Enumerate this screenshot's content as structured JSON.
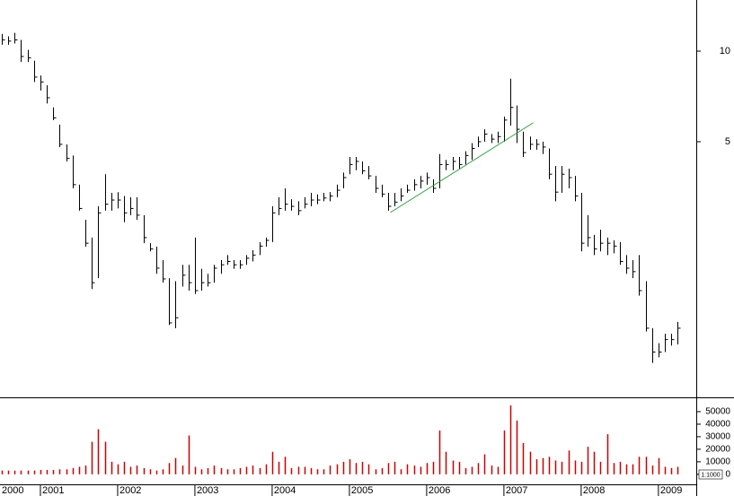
{
  "chart_data": {
    "type": "ohlc",
    "log_scale": true,
    "color": "#000000",
    "x": [
      2000.5,
      2000.583,
      2000.667,
      2000.75,
      2000.833,
      2000.917,
      2001,
      2001.083,
      2001.167,
      2001.25,
      2001.333,
      2001.417,
      2001.5,
      2001.583,
      2001.667,
      2001.75,
      2001.833,
      2001.917,
      2002,
      2002.083,
      2002.167,
      2002.25,
      2002.333,
      2002.417,
      2002.5,
      2002.583,
      2002.667,
      2002.75,
      2002.833,
      2002.917,
      2003,
      2003.083,
      2003.167,
      2003.25,
      2003.333,
      2003.417,
      2003.5,
      2003.583,
      2003.667,
      2003.75,
      2003.833,
      2003.917,
      2004,
      2004.083,
      2004.167,
      2004.25,
      2004.333,
      2004.417,
      2004.5,
      2004.583,
      2004.667,
      2004.75,
      2004.833,
      2004.917,
      2005,
      2005.083,
      2005.167,
      2005.25,
      2005.333,
      2005.417,
      2005.5,
      2005.583,
      2005.667,
      2005.75,
      2005.833,
      2005.917,
      2006,
      2006.083,
      2006.167,
      2006.25,
      2006.333,
      2006.417,
      2006.5,
      2006.583,
      2006.667,
      2006.75,
      2006.833,
      2006.917,
      2007,
      2007.083,
      2007.167,
      2007.25,
      2007.333,
      2007.417,
      2007.5,
      2007.583,
      2007.667,
      2007.75,
      2007.833,
      2007.917,
      2008,
      2008.083,
      2008.167,
      2008.25,
      2008.333,
      2008.417,
      2008.5,
      2008.583,
      2008.667,
      2008.75,
      2008.833,
      2008.917,
      2009,
      2009.083,
      2009.167,
      2009.25
    ],
    "high": [
      11.4,
      11.2,
      11.5,
      10.9,
      10.1,
      9.3,
      8.3,
      7.7,
      6.5,
      5.7,
      4.9,
      4.5,
      3.6,
      2.75,
      2.4,
      3.05,
      3.9,
      3.38,
      3.4,
      3.3,
      3.27,
      3.27,
      2.85,
      2.3,
      2.24,
      2.02,
      1.76,
      1.72,
      1.95,
      1.95,
      2.4,
      1.89,
      1.82,
      1.95,
      2.02,
      2.1,
      2.02,
      2.02,
      2.1,
      2.18,
      2.32,
      2.4,
      3.05,
      3.27,
      3.5,
      3.22,
      3.17,
      3.27,
      3.38,
      3.34,
      3.38,
      3.4,
      3.6,
      3.95,
      4.45,
      4.45,
      4.3,
      4.15,
      3.85,
      3.6,
      3.38,
      3.38,
      3.5,
      3.6,
      3.75,
      3.85,
      3.95,
      3.75,
      4.55,
      4.35,
      4.45,
      4.45,
      4.65,
      4.95,
      5.2,
      5.5,
      5.3,
      5.4,
      6.06,
      8.1,
      6.6,
      5.4,
      5.2,
      5.1,
      5.0,
      4.75,
      4.15,
      4.15,
      4.07,
      3.85,
      3.38,
      2.85,
      2.45,
      2.55,
      2.4,
      2.35,
      2.32,
      2.1,
      2.02,
      2.1,
      1.72,
      1.2,
      1.07,
      1.15,
      1.15,
      1.26
    ],
    "low": [
      10.5,
      10.5,
      10.6,
      9.2,
      9.2,
      7.9,
      7.4,
      6.7,
      5.9,
      4.8,
      4.3,
      3.5,
      2.95,
      2.24,
      1.62,
      1.76,
      2.95,
      2.95,
      3.0,
      2.7,
      2.85,
      2.75,
      2.3,
      2.16,
      1.82,
      1.7,
      1.23,
      1.2,
      1.65,
      1.6,
      1.56,
      1.6,
      1.65,
      1.7,
      1.82,
      1.95,
      1.89,
      1.89,
      1.95,
      2.0,
      2.1,
      2.24,
      2.32,
      2.85,
      2.95,
      2.95,
      2.85,
      3.0,
      3.05,
      3.1,
      3.17,
      3.17,
      3.27,
      3.5,
      3.9,
      4.02,
      3.9,
      3.75,
      3.38,
      3.27,
      2.95,
      3.05,
      3.17,
      3.38,
      3.44,
      3.5,
      3.6,
      3.38,
      3.5,
      4.02,
      4.02,
      4.07,
      4.2,
      4.35,
      4.8,
      5.0,
      4.95,
      4.95,
      5.0,
      5.66,
      4.95,
      4.45,
      4.7,
      4.7,
      4.55,
      3.75,
      3.17,
      3.38,
      3.5,
      3.17,
      2.16,
      2.24,
      2.1,
      2.16,
      2.1,
      2.13,
      1.95,
      1.82,
      1.76,
      1.54,
      1.17,
      0.92,
      0.96,
      1.0,
      1.05,
      1.06
    ],
    "close": [
      10.9,
      10.8,
      10.9,
      9.6,
      9.5,
      8.2,
      7.9,
      7.0,
      6.0,
      4.9,
      4.4,
      3.6,
      3.0,
      2.3,
      1.7,
      2.9,
      3.1,
      3.2,
      3.2,
      2.9,
      3.0,
      2.85,
      2.4,
      2.2,
      1.9,
      1.75,
      1.25,
      1.3,
      1.8,
      1.7,
      1.6,
      1.7,
      1.7,
      1.9,
      1.95,
      2.0,
      1.95,
      1.95,
      2.05,
      2.1,
      2.25,
      2.35,
      2.9,
      3.0,
      3.1,
      3.05,
      2.95,
      3.1,
      3.2,
      3.2,
      3.25,
      3.3,
      3.45,
      3.8,
      4.2,
      4.3,
      4.0,
      3.85,
      3.5,
      3.35,
      3.05,
      3.15,
      3.3,
      3.45,
      3.6,
      3.7,
      3.8,
      3.5,
      4.2,
      4.2,
      4.3,
      4.2,
      4.5,
      4.75,
      5.0,
      5.3,
      5.1,
      5.2,
      5.9,
      6.5,
      5.5,
      4.6,
      4.9,
      4.9,
      4.8,
      3.9,
      3.4,
      3.9,
      3.8,
      3.3,
      2.3,
      2.4,
      2.2,
      2.3,
      2.3,
      2.25,
      2.0,
      1.9,
      1.85,
      1.6,
      1.2,
      1.0,
      1.0,
      1.1,
      1.1,
      1.2
    ],
    "xlim": [
      2000.477,
      2009.49
    ],
    "xticks": [
      2000,
      2001,
      2002,
      2003,
      2004,
      2005,
      2006,
      2007,
      2008,
      2009
    ],
    "ylim": [
      0.707,
      14.79
    ],
    "yticks": [
      5,
      10
    ],
    "trendline": {
      "x": [
        2005.53,
        2007.38
      ],
      "y": [
        2.91,
        5.78
      ],
      "color": "#2e9e3e"
    },
    "volume": {
      "color": "#cc0000",
      "label": "1:1000",
      "ylim": [
        -8000,
        60000
      ],
      "yticks": [
        0,
        10000,
        20000,
        30000,
        40000,
        50000
      ],
      "values": [
        3000,
        3000,
        3000,
        3000,
        3000,
        3000,
        3500,
        3500,
        3500,
        4000,
        4000,
        5000,
        6000,
        7000,
        26000,
        36000,
        26000,
        10000,
        8000,
        10000,
        6000,
        7000,
        5000,
        4000,
        3000,
        4000,
        9000,
        13000,
        7000,
        31000,
        6000,
        4000,
        5000,
        7000,
        5000,
        4000,
        4000,
        5000,
        6000,
        7000,
        5000,
        8000,
        18000,
        10000,
        14000,
        5000,
        6000,
        6000,
        5000,
        4000,
        4000,
        7000,
        8000,
        10000,
        12000,
        9000,
        10000,
        8000,
        4000,
        5000,
        9000,
        10000,
        4000,
        8000,
        7000,
        6000,
        9000,
        10000,
        35000,
        18000,
        11000,
        10000,
        5000,
        6000,
        9000,
        16000,
        7000,
        6000,
        35000,
        55000,
        43000,
        25000,
        18000,
        12000,
        13000,
        14000,
        11000,
        10000,
        19000,
        11000,
        10000,
        22000,
        18000,
        10000,
        32000,
        9000,
        10000,
        8000,
        8000,
        14000,
        14000,
        7000,
        13000,
        6000,
        5000,
        6000
      ]
    }
  }
}
